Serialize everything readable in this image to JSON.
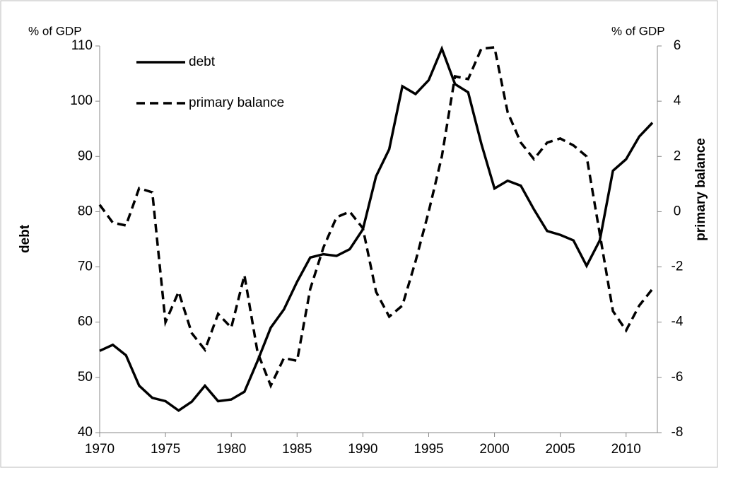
{
  "chart_data": {
    "type": "line",
    "y_unit_label": "% of GDP",
    "y2_unit_label": "% of GDP",
    "ylabel": "debt",
    "y2label": "primary balance",
    "x": [
      1970,
      1971,
      1972,
      1973,
      1974,
      1975,
      1976,
      1977,
      1978,
      1979,
      1980,
      1981,
      1982,
      1983,
      1984,
      1985,
      1986,
      1987,
      1988,
      1989,
      1990,
      1991,
      1992,
      1993,
      1994,
      1995,
      1996,
      1997,
      1998,
      1999,
      2000,
      2001,
      2002,
      2003,
      2004,
      2005,
      2006,
      2007,
      2008,
      2009,
      2010,
      2011,
      2012
    ],
    "series": [
      {
        "name": "debt",
        "color": "#000000",
        "dash": "solid",
        "values": [
          54.8,
          55.9,
          54,
          48.5,
          46.3,
          45.7,
          44,
          45.6,
          48.5,
          45.7,
          46,
          47.4,
          53,
          59,
          62.3,
          67.3,
          71.7,
          72.3,
          72,
          73.2,
          76.8,
          86.4,
          91.3,
          102.7,
          101.3,
          103.8,
          109.5,
          103.1,
          101.6,
          92.3,
          84.2,
          85.6,
          84.7,
          80.4,
          76.5,
          75.8,
          74.8,
          70.2,
          74.8,
          87.4,
          89.5,
          93.6,
          96.1
        ]
      },
      {
        "name": "primary balance",
        "color": "#000000",
        "dash": "dashed",
        "axis": "y2",
        "values": [
          0.25,
          -0.4,
          -0.5,
          0.85,
          0.7,
          -4,
          -2.9,
          -4.4,
          -5,
          -3.7,
          -4.2,
          -2.3,
          -5.1,
          -6.3,
          -5.3,
          -5.4,
          -2.8,
          -1.3,
          -0.2,
          0,
          -0.6,
          -2.9,
          -3.8,
          -3.4,
          -1.8,
          0,
          2,
          4.9,
          4.8,
          5.9,
          5.95,
          3.6,
          2.5,
          1.9,
          2.5,
          2.65,
          2.4,
          2,
          -0.8,
          -3.6,
          -4.3,
          -3.4,
          -2.8
        ]
      }
    ],
    "xlim": [
      1970,
      2012
    ],
    "xticks": [
      1970,
      1975,
      1980,
      1985,
      1990,
      1995,
      2000,
      2005,
      2010
    ],
    "ylim": [
      40,
      110
    ],
    "yticks": [
      40,
      50,
      60,
      70,
      80,
      90,
      100,
      110
    ],
    "y2lim": [
      -8,
      6
    ],
    "y2ticks": [
      -8,
      -6,
      -4,
      -2,
      0,
      2,
      4,
      6
    ],
    "legend": "upper left",
    "grid": false
  }
}
